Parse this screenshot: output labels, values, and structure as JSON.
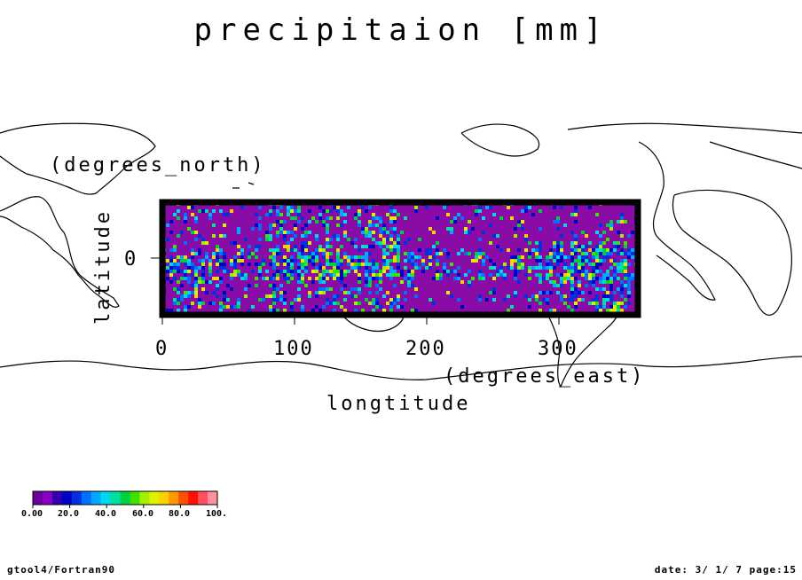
{
  "title": "precipitaion [mm]",
  "axes": {
    "x_label": "longtitude",
    "x_unit": "(degrees_east)",
    "y_label": "latitude",
    "y_unit": "(degrees_north)",
    "x_ticks": [
      "0",
      "100",
      "200",
      "300"
    ],
    "y_ticks": [
      "0"
    ]
  },
  "colorbar": {
    "ticks": [
      "0.00",
      "20.0",
      "40.0",
      "60.0",
      "80.0",
      "100."
    ],
    "colors": [
      "#6b009a",
      "#8a00c0",
      "#3000b0",
      "#0000c8",
      "#0030e0",
      "#0070ff",
      "#00a8ff",
      "#00d8f0",
      "#00e0a0",
      "#00d040",
      "#40e000",
      "#a0f000",
      "#e0f000",
      "#ffd000",
      "#ff9800",
      "#ff5000",
      "#ff1000",
      "#ff5060",
      "#ff90a0"
    ]
  },
  "map": {
    "background_color": "#8a0ca6",
    "coast_color": "#000000"
  },
  "footer": {
    "left": "gtool4/Fortran90",
    "right": "date: 3/ 1/ 7 page:15"
  }
}
